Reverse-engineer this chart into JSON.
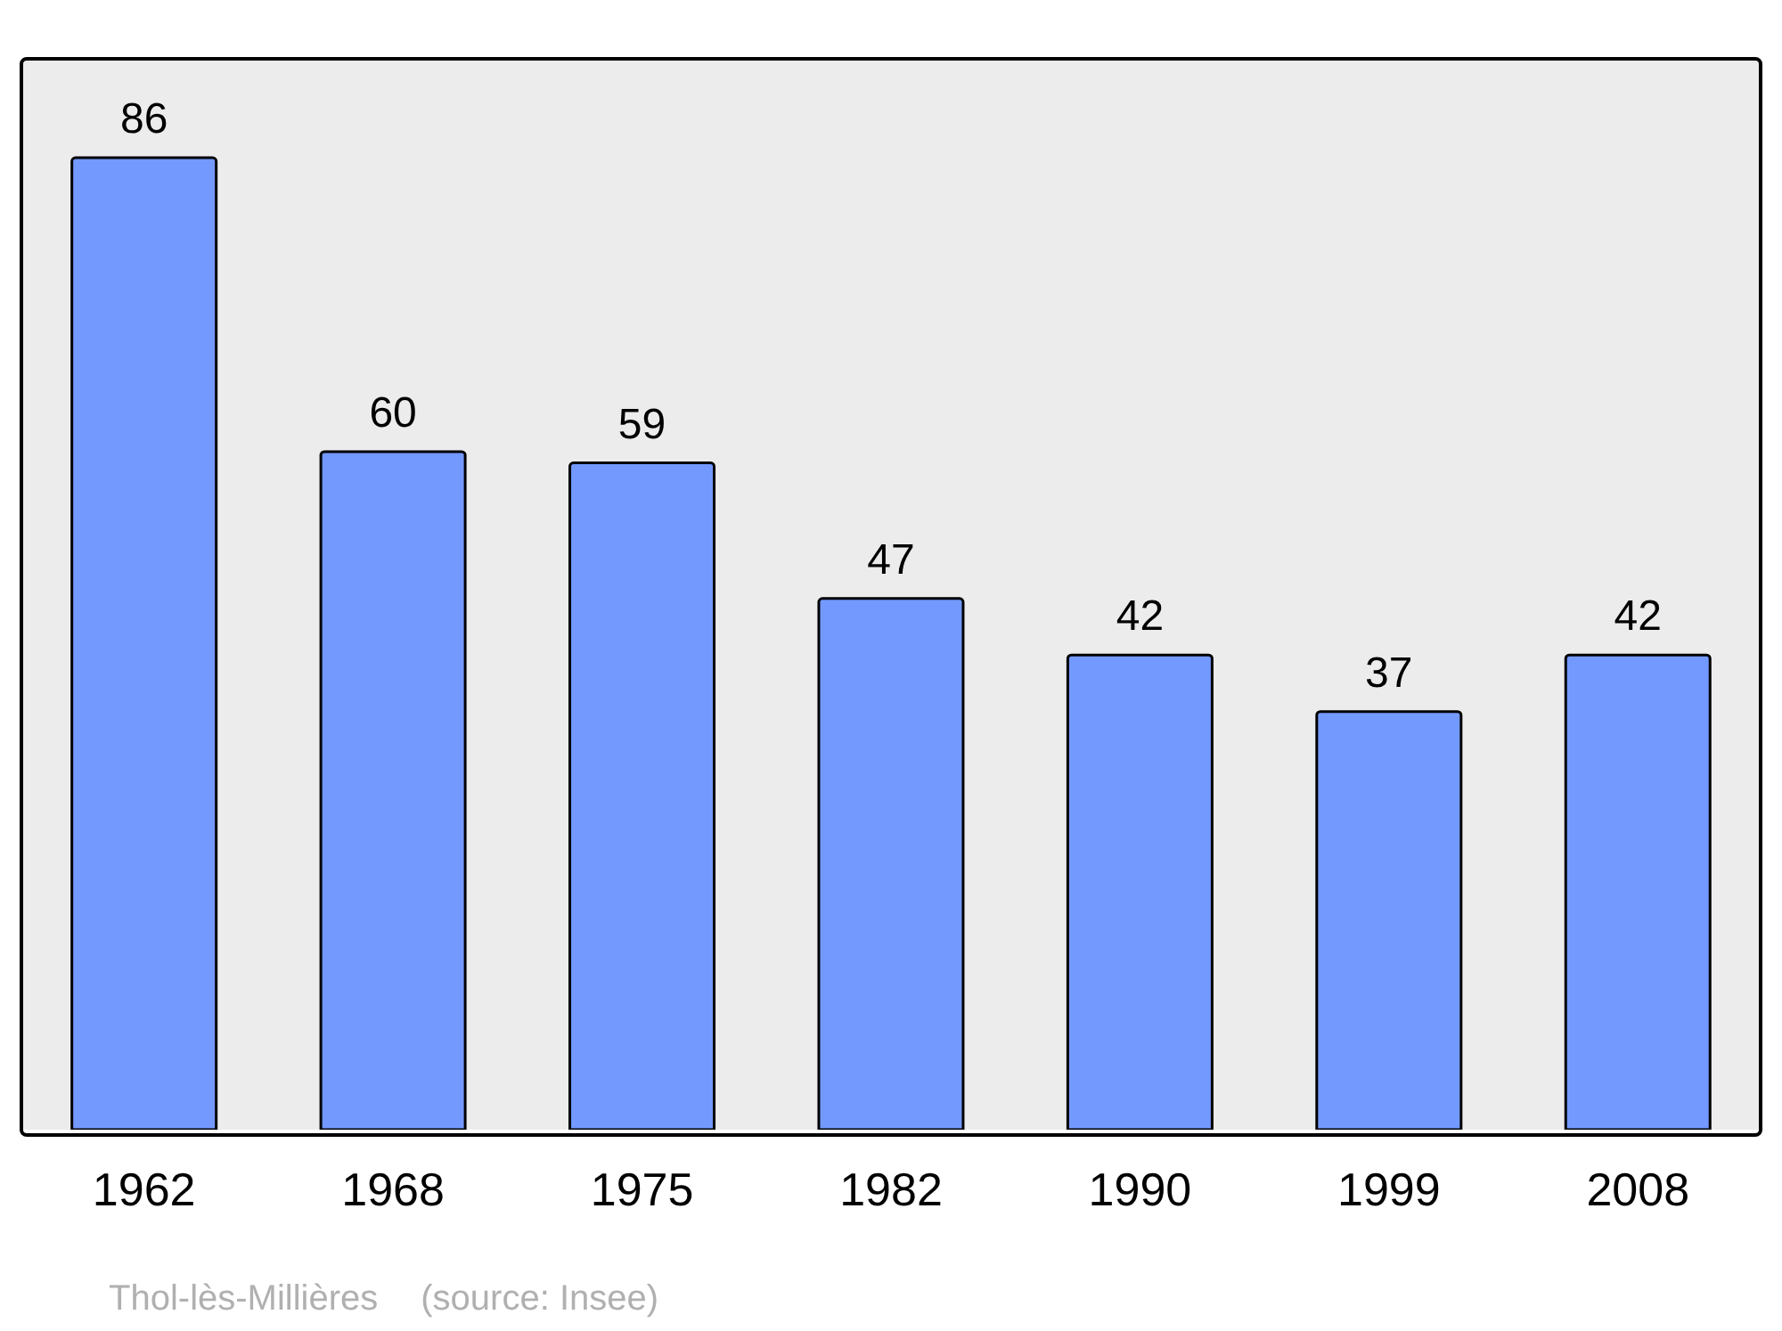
{
  "chart_data": {
    "type": "bar",
    "categories": [
      "1962",
      "1968",
      "1975",
      "1982",
      "1990",
      "1999",
      "2008"
    ],
    "values": [
      86,
      60,
      59,
      47,
      42,
      37,
      42
    ],
    "color": "#7399ff",
    "data_labels": true,
    "grid": false,
    "annotations": [
      "Thol-lès-Millières",
      "(source: Insee)"
    ]
  }
}
